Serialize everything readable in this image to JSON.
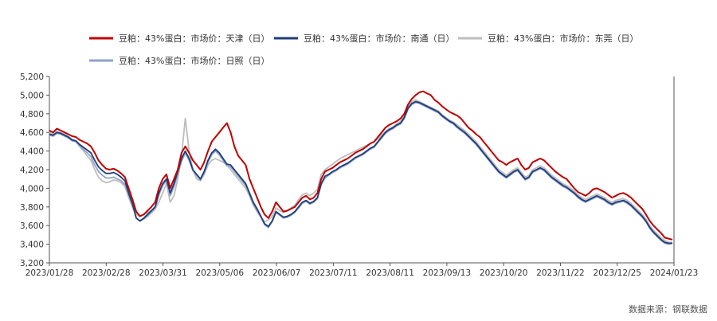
{
  "chart_data": {
    "type": "line",
    "title": "",
    "xlabel": "",
    "ylabel": "",
    "ylim": [
      3200,
      5200
    ],
    "yticks": [
      "3,200",
      "3,400",
      "3,600",
      "3,800",
      "4,000",
      "4,200",
      "4,400",
      "4,600",
      "4,800",
      "5,000",
      "5,200"
    ],
    "xticks": [
      "2023/01/28",
      "2023/02/28",
      "2023/03/31",
      "2023/05/06",
      "2023/06/07",
      "2023/07/11",
      "2023/08/11",
      "2023/09/13",
      "2023/10/20",
      "2023/11/22",
      "2023/12/25",
      "2024/01/23"
    ],
    "grid": false,
    "legend_position": "top",
    "source": "数据来源：钢联数据",
    "series": [
      {
        "name": "豆粕：43%蛋白：市场价：天津（日）",
        "color": "#C00000",
        "values": [
          4620,
          4600,
          4640,
          4620,
          4600,
          4580,
          4560,
          4550,
          4520,
          4500,
          4480,
          4450,
          4380,
          4300,
          4250,
          4210,
          4200,
          4210,
          4190,
          4160,
          4120,
          4000,
          3880,
          3750,
          3700,
          3720,
          3760,
          3800,
          3850,
          4000,
          4100,
          4150,
          4000,
          4100,
          4200,
          4380,
          4450,
          4380,
          4300,
          4250,
          4200,
          4280,
          4400,
          4500,
          4550,
          4600,
          4650,
          4700,
          4600,
          4450,
          4350,
          4300,
          4250,
          4100,
          4000,
          3900,
          3800,
          3720,
          3680,
          3750,
          3850,
          3800,
          3750,
          3760,
          3780,
          3800,
          3850,
          3900,
          3920,
          3880,
          3900,
          3950,
          4100,
          4180,
          4200,
          4220,
          4250,
          4280,
          4300,
          4320,
          4350,
          4380,
          4400,
          4420,
          4450,
          4480,
          4500,
          4550,
          4600,
          4650,
          4680,
          4700,
          4720,
          4750,
          4800,
          4900,
          4960,
          5000,
          5030,
          5040,
          5020,
          5000,
          4950,
          4920,
          4880,
          4850,
          4820,
          4800,
          4780,
          4750,
          4700,
          4650,
          4620,
          4580,
          4550,
          4500,
          4450,
          4400,
          4350,
          4300,
          4280,
          4250,
          4280,
          4300,
          4320,
          4250,
          4200,
          4220,
          4280,
          4300,
          4320,
          4300,
          4260,
          4220,
          4180,
          4150,
          4120,
          4100,
          4050,
          4000,
          3960,
          3940,
          3920,
          3950,
          3990,
          4000,
          3980,
          3960,
          3930,
          3900,
          3920,
          3940,
          3950,
          3930,
          3900,
          3860,
          3820,
          3780,
          3720,
          3650,
          3600,
          3560,
          3520,
          3470,
          3460,
          3450
        ],
        "dash": false
      },
      {
        "name": "豆粕：43%蛋白：市场价：南通（日）",
        "color": "#1F3D7A",
        "values": [
          4580,
          4570,
          4600,
          4590,
          4570,
          4550,
          4520,
          4510,
          4470,
          4440,
          4410,
          4380,
          4300,
          4230,
          4190,
          4160,
          4160,
          4170,
          4150,
          4120,
          4080,
          3950,
          3830,
          3680,
          3650,
          3680,
          3720,
          3760,
          3800,
          3950,
          4050,
          4100,
          3950,
          4050,
          4180,
          4320,
          4400,
          4320,
          4200,
          4150,
          4100,
          4180,
          4300,
          4380,
          4420,
          4380,
          4320,
          4260,
          4250,
          4200,
          4150,
          4100,
          4050,
          3950,
          3850,
          3780,
          3700,
          3620,
          3590,
          3650,
          3750,
          3720,
          3690,
          3700,
          3720,
          3750,
          3800,
          3850,
          3870,
          3840,
          3860,
          3900,
          4050,
          4130,
          4150,
          4180,
          4200,
          4230,
          4250,
          4270,
          4300,
          4330,
          4350,
          4370,
          4400,
          4430,
          4450,
          4500,
          4550,
          4600,
          4630,
          4650,
          4680,
          4700,
          4760,
          4860,
          4910,
          4930,
          4920,
          4900,
          4880,
          4860,
          4840,
          4820,
          4780,
          4750,
          4720,
          4700,
          4660,
          4630,
          4600,
          4560,
          4520,
          4480,
          4430,
          4380,
          4330,
          4280,
          4230,
          4180,
          4150,
          4120,
          4150,
          4180,
          4200,
          4150,
          4100,
          4120,
          4180,
          4200,
          4220,
          4200,
          4160,
          4120,
          4090,
          4060,
          4030,
          4010,
          3980,
          3950,
          3910,
          3880,
          3860,
          3880,
          3900,
          3920,
          3900,
          3880,
          3850,
          3830,
          3850,
          3860,
          3870,
          3850,
          3820,
          3780,
          3740,
          3700,
          3650,
          3580,
          3530,
          3490,
          3450,
          3420,
          3410,
          3410
        ],
        "dash": false
      },
      {
        "name": "豆粕：43%蛋白：市场价：东莞（日）",
        "color": "#BDBDBD",
        "values": [
          4600,
          4580,
          4610,
          4600,
          4580,
          4560,
          4520,
          4500,
          4450,
          4400,
          4350,
          4300,
          4200,
          4120,
          4080,
          4060,
          4070,
          4090,
          4080,
          4060,
          4020,
          3900,
          3800,
          3720,
          3700,
          3720,
          3740,
          3760,
          3780,
          3850,
          3950,
          4050,
          3850,
          3920,
          4100,
          4350,
          4750,
          4400,
          4200,
          4100,
          4080,
          4150,
          4250,
          4300,
          4320,
          4300,
          4280,
          4250,
          4200,
          4150,
          4100,
          4050,
          4000,
          3920,
          3820,
          3750,
          3690,
          3640,
          3660,
          3700,
          3790,
          3760,
          3740,
          3760,
          3790,
          3820,
          3880,
          3930,
          3950,
          3920,
          3950,
          3990,
          4150,
          4200,
          4230,
          4260,
          4290,
          4320,
          4340,
          4360,
          4380,
          4400,
          4420,
          4440,
          4460,
          4480,
          4500,
          4530,
          4570,
          4610,
          4640,
          4660,
          4690,
          4720,
          4780,
          4880,
          4930,
          4950,
          4930,
          4910,
          4890,
          4870,
          4850,
          4830,
          4790,
          4760,
          4730,
          4710,
          4680,
          4650,
          4620,
          4580,
          4540,
          4500,
          4450,
          4400,
          4350,
          4300,
          4250,
          4200,
          4170,
          4140,
          4170,
          4200,
          4220,
          4170,
          4120,
          4140,
          4200,
          4220,
          4240,
          4220,
          4180,
          4140,
          4110,
          4080,
          4050,
          4030,
          4000,
          3970,
          3930,
          3900,
          3880,
          3900,
          3920,
          3940,
          3920,
          3900,
          3870,
          3850,
          3870,
          3880,
          3890,
          3870,
          3840,
          3800,
          3760,
          3720,
          3670,
          3600,
          3550,
          3510,
          3470,
          3440,
          3420,
          3420
        ],
        "dash": false
      },
      {
        "name": "豆粕：43%蛋白：市场价：日照（日）",
        "color": "#8EA3CC",
        "values": [
          4570,
          4560,
          4590,
          4580,
          4560,
          4540,
          4510,
          4500,
          4460,
          4420,
          4380,
          4340,
          4250,
          4180,
          4140,
          4110,
          4110,
          4120,
          4100,
          4080,
          4040,
          3930,
          3820,
          3680,
          3650,
          3670,
          3700,
          3740,
          3780,
          3930,
          4030,
          4080,
          3920,
          4020,
          4150,
          4290,
          4380,
          4300,
          4190,
          4140,
          4090,
          4160,
          4280,
          4360,
          4400,
          4360,
          4300,
          4240,
          4230,
          4180,
          4130,
          4080,
          4030,
          3930,
          3830,
          3760,
          3690,
          3610,
          3580,
          3640,
          3740,
          3710,
          3680,
          3690,
          3710,
          3740,
          3790,
          3840,
          3860,
          3830,
          3850,
          3890,
          4040,
          4110,
          4140,
          4170,
          4190,
          4220,
          4240,
          4260,
          4290,
          4320,
          4340,
          4360,
          4390,
          4420,
          4440,
          4490,
          4540,
          4590,
          4620,
          4640,
          4670,
          4690,
          4750,
          4850,
          4900,
          4920,
          4910,
          4890,
          4870,
          4850,
          4830,
          4810,
          4770,
          4740,
          4710,
          4690,
          4650,
          4620,
          4590,
          4550,
          4510,
          4470,
          4420,
          4370,
          4320,
          4270,
          4220,
          4170,
          4140,
          4110,
          4140,
          4170,
          4190,
          4140,
          4090,
          4110,
          4170,
          4190,
          4210,
          4190,
          4150,
          4110,
          4080,
          4050,
          4020,
          4000,
          3970,
          3940,
          3900,
          3870,
          3850,
          3870,
          3890,
          3910,
          3890,
          3870,
          3840,
          3820,
          3840,
          3850,
          3860,
          3840,
          3810,
          3770,
          3730,
          3690,
          3640,
          3570,
          3520,
          3480,
          3440,
          3410,
          3400,
          3410
        ],
        "dash": false
      }
    ]
  }
}
